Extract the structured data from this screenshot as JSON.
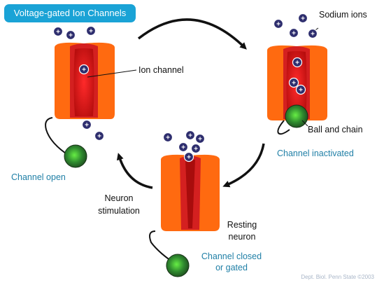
{
  "title": "Voltage-gated Ion Channels",
  "labels": {
    "sodium_ions": "Sodium ions",
    "ion_channel": "Ion channel",
    "ball_and_chain": "Ball and chain",
    "channel_inactivated": "Channel inactivated",
    "channel_open": "Channel open",
    "neuron_stimulation_line1": "Neuron",
    "neuron_stimulation_line2": "stimulation",
    "resting_neuron_line1": "Resting",
    "resting_neuron_line2": "neuron",
    "channel_closed_line1": "Channel closed",
    "channel_closed_line2": "or gated"
  },
  "ion_symbol": "+",
  "credit": "Dept. Biol. Penn State ©2003",
  "colors": {
    "title_bg": "#1aa3d6",
    "channel_outer": "#ff6a10",
    "channel_inner": "#d42020",
    "pore": "#b81010",
    "ion_fill": "#2e2e6e",
    "ball": "#3c9a3c",
    "label_blue": "#1f7fa6",
    "credit": "#a9b6c8"
  }
}
